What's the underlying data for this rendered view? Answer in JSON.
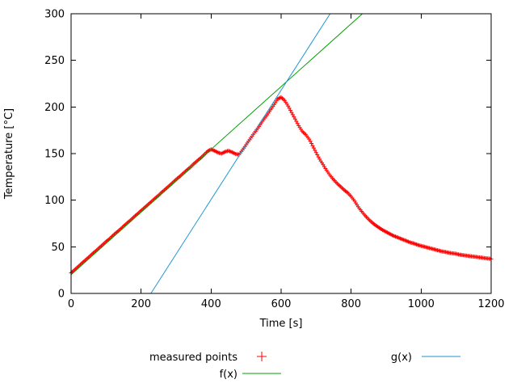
{
  "page": {
    "background": "#ffffff"
  },
  "chart_data": {
    "type": "scatter",
    "title": "",
    "xlabel": "Time [s]",
    "ylabel": "Temperature [°C]",
    "xlim": [
      0,
      1200
    ],
    "ylim": [
      0,
      300
    ],
    "xticks": [
      0,
      200,
      400,
      600,
      800,
      1000,
      1200
    ],
    "yticks": [
      0,
      50,
      100,
      150,
      200,
      250,
      300
    ],
    "grid": false,
    "legend_position": "below-plot",
    "series": [
      {
        "name": "measured points",
        "kind": "points",
        "marker": "plus",
        "color": "#ff0000",
        "points": [
          [
            0,
            22.0
          ],
          [
            10,
            25.2
          ],
          [
            20,
            28.6
          ],
          [
            30,
            32.1
          ],
          [
            40,
            35.4
          ],
          [
            50,
            38.7
          ],
          [
            60,
            42.2
          ],
          [
            70,
            45.3
          ],
          [
            80,
            48.8
          ],
          [
            90,
            52.1
          ],
          [
            100,
            55.6
          ],
          [
            110,
            58.6
          ],
          [
            120,
            62.2
          ],
          [
            130,
            65.5
          ],
          [
            140,
            68.6
          ],
          [
            150,
            72.1
          ],
          [
            160,
            75.4
          ],
          [
            170,
            78.6
          ],
          [
            180,
            82.2
          ],
          [
            190,
            85.3
          ],
          [
            200,
            88.8
          ],
          [
            210,
            92.0
          ],
          [
            220,
            95.4
          ],
          [
            230,
            98.7
          ],
          [
            240,
            102.1
          ],
          [
            250,
            105.2
          ],
          [
            260,
            108.8
          ],
          [
            270,
            112.0
          ],
          [
            280,
            115.3
          ],
          [
            290,
            118.7
          ],
          [
            300,
            122.2
          ],
          [
            310,
            125.3
          ],
          [
            320,
            128.7
          ],
          [
            330,
            132.0
          ],
          [
            340,
            135.2
          ],
          [
            350,
            138.8
          ],
          [
            360,
            142.1
          ],
          [
            370,
            145.2
          ],
          [
            380,
            148.8
          ],
          [
            390,
            152.5
          ],
          [
            400,
            154.5
          ],
          [
            410,
            153.0
          ],
          [
            420,
            151.0
          ],
          [
            430,
            150.0
          ],
          [
            440,
            152.0
          ],
          [
            450,
            153.0
          ],
          [
            460,
            151.5
          ],
          [
            470,
            149.5
          ],
          [
            480,
            149.0
          ],
          [
            490,
            154.0
          ],
          [
            500,
            159.5
          ],
          [
            510,
            165.0
          ],
          [
            520,
            170.5
          ],
          [
            530,
            175.5
          ],
          [
            540,
            181.0
          ],
          [
            550,
            186.5
          ],
          [
            560,
            191.5
          ],
          [
            570,
            197.0
          ],
          [
            580,
            202.5
          ],
          [
            590,
            208.5
          ],
          [
            600,
            210.5
          ],
          [
            610,
            207.0
          ],
          [
            620,
            201.0
          ],
          [
            630,
            194.0
          ],
          [
            640,
            187.0
          ],
          [
            650,
            180.0
          ],
          [
            660,
            174.0
          ],
          [
            670,
            170.5
          ],
          [
            680,
            165.5
          ],
          [
            690,
            158.5
          ],
          [
            700,
            151.0
          ],
          [
            710,
            144.0
          ],
          [
            720,
            138.0
          ],
          [
            730,
            132.0
          ],
          [
            740,
            126.5
          ],
          [
            750,
            122.0
          ],
          [
            760,
            118.0
          ],
          [
            770,
            114.5
          ],
          [
            780,
            111.0
          ],
          [
            790,
            108.0
          ],
          [
            800,
            104.0
          ],
          [
            810,
            99.0
          ],
          [
            820,
            93.0
          ],
          [
            830,
            88.0
          ],
          [
            840,
            83.5
          ],
          [
            850,
            79.5
          ],
          [
            860,
            76.0
          ],
          [
            870,
            73.0
          ],
          [
            880,
            70.5
          ],
          [
            890,
            68.0
          ],
          [
            900,
            66.0
          ],
          [
            910,
            64.0
          ],
          [
            920,
            62.0
          ],
          [
            930,
            60.5
          ],
          [
            940,
            59.0
          ],
          [
            950,
            57.5
          ],
          [
            960,
            56.0
          ],
          [
            970,
            54.5
          ],
          [
            980,
            53.5
          ],
          [
            990,
            52.0
          ],
          [
            1000,
            51.0
          ],
          [
            1010,
            50.0
          ],
          [
            1020,
            49.0
          ],
          [
            1030,
            48.0
          ],
          [
            1040,
            47.0
          ],
          [
            1050,
            46.0
          ],
          [
            1060,
            45.0
          ],
          [
            1070,
            44.5
          ],
          [
            1080,
            43.5
          ],
          [
            1090,
            43.0
          ],
          [
            1100,
            42.5
          ],
          [
            1110,
            41.5
          ],
          [
            1120,
            41.0
          ],
          [
            1130,
            40.5
          ],
          [
            1140,
            40.0
          ],
          [
            1150,
            39.5
          ],
          [
            1160,
            39.0
          ],
          [
            1170,
            38.5
          ],
          [
            1180,
            38.0
          ],
          [
            1190,
            37.5
          ],
          [
            1200,
            37.0
          ]
        ]
      },
      {
        "name": "f(x)",
        "kind": "line",
        "color": "#00a000",
        "slope": 0.3365,
        "intercept": 20
      },
      {
        "name": "g(x)",
        "kind": "line",
        "color": "#1e96d2",
        "slope": 0.586,
        "intercept": -133.6
      }
    ]
  }
}
